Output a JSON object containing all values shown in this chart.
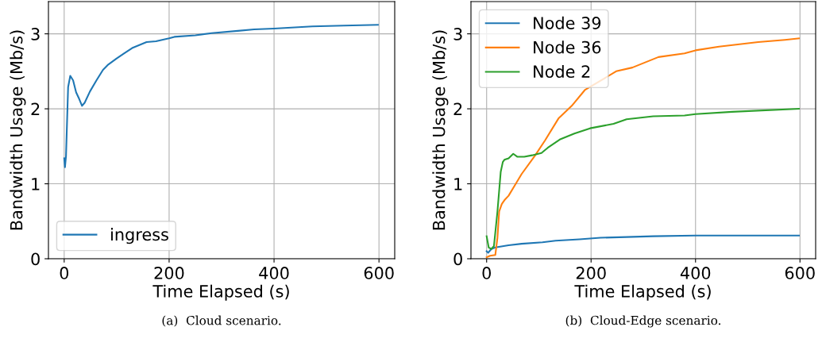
{
  "chart_data": [
    {
      "type": "line",
      "xlabel": "Time Elapsed (s)",
      "ylabel": "Bandwidth Usage (Mb/s)",
      "xlim": [
        -30,
        630
      ],
      "ylim": [
        0,
        3.43
      ],
      "xticks": [
        0,
        200,
        400,
        600
      ],
      "yticks": [
        0,
        1,
        2,
        3
      ],
      "grid": true,
      "legend": "bottom left",
      "annotations": [
        "(a)  Cloud scenario."
      ],
      "series": [
        {
          "name": "ingress",
          "color": "#1f77b4",
          "x": [
            0,
            1.5,
            3.5,
            7.5,
            11.6,
            17,
            22.7,
            28.7,
            34,
            39,
            49,
            61.5,
            74,
            84,
            99.5,
            114.5,
            129.5,
            157,
            175,
            200,
            210,
            250,
            281,
            331,
            362,
            400,
            473,
            533,
            598
          ],
          "values": [
            1.34,
            1.22,
            1.37,
            2.29,
            2.44,
            2.38,
            2.22,
            2.13,
            2.04,
            2.08,
            2.23,
            2.38,
            2.52,
            2.59,
            2.67,
            2.74,
            2.81,
            2.89,
            2.9,
            2.94,
            2.96,
            2.98,
            3.01,
            3.04,
            3.06,
            3.07,
            3.1,
            3.11,
            3.12
          ]
        }
      ]
    },
    {
      "type": "line",
      "xlabel": "Time Elapsed (s)",
      "ylabel": "Bandwidth Usage (Mb/s)",
      "xlim": [
        -30,
        630
      ],
      "ylim": [
        0,
        3.43
      ],
      "xticks": [
        0,
        200,
        400,
        600
      ],
      "yticks": [
        0,
        1,
        2,
        3
      ],
      "grid": true,
      "legend": "top left",
      "annotations": [
        "(b)  Cloud-Edge scenario."
      ],
      "series": [
        {
          "name": "Node 39",
          "color": "#1f77b4",
          "x": [
            0,
            3,
            9,
            16.6,
            42,
            67,
            107,
            132,
            178,
            218,
            268,
            319,
            400,
            470,
            598
          ],
          "values": [
            0.1,
            0.08,
            0.13,
            0.15,
            0.18,
            0.2,
            0.22,
            0.24,
            0.26,
            0.28,
            0.29,
            0.3,
            0.31,
            0.31,
            0.31
          ]
        },
        {
          "name": "Node 36",
          "color": "#ff7f0e",
          "x": [
            0,
            6.5,
            16.6,
            20.7,
            24,
            29,
            34,
            42,
            54,
            67,
            92,
            112,
            137.5,
            163,
            188,
            248,
            279,
            329,
            379,
            400,
            445,
            520,
            571,
            598
          ],
          "values": [
            0.02,
            0.04,
            0.05,
            0.28,
            0.63,
            0.73,
            0.78,
            0.84,
            0.98,
            1.13,
            1.37,
            1.58,
            1.87,
            2.04,
            2.25,
            2.5,
            2.55,
            2.69,
            2.74,
            2.78,
            2.83,
            2.89,
            2.92,
            2.94
          ]
        },
        {
          "name": "Node 2",
          "color": "#2ca02c",
          "x": [
            0,
            4,
            9,
            14,
            20.7,
            27,
            31,
            34,
            42,
            51,
            59,
            72,
            87,
            105,
            117,
            140,
            168,
            198,
            243,
            268,
            319,
            379,
            400,
            470,
            598
          ],
          "values": [
            0.3,
            0.15,
            0.13,
            0.17,
            0.63,
            1.16,
            1.29,
            1.32,
            1.34,
            1.4,
            1.36,
            1.36,
            1.38,
            1.41,
            1.48,
            1.59,
            1.67,
            1.74,
            1.8,
            1.86,
            1.9,
            1.91,
            1.93,
            1.96,
            2.0
          ]
        }
      ]
    }
  ]
}
